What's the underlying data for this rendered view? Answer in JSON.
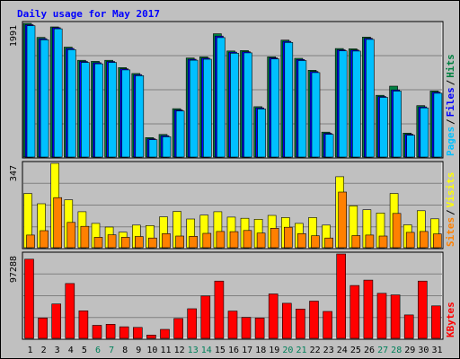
{
  "chart_data": {
    "type": "bar",
    "title": "Daily usage for May 2017",
    "categories": [
      "1",
      "2",
      "3",
      "4",
      "5",
      "6",
      "7",
      "8",
      "9",
      "10",
      "11",
      "12",
      "13",
      "14",
      "15",
      "16",
      "17",
      "18",
      "19",
      "20",
      "21",
      "22",
      "23",
      "24",
      "25",
      "26",
      "27",
      "28",
      "29",
      "30",
      "31"
    ],
    "weekend_days": [
      "6",
      "7",
      "13",
      "14",
      "20",
      "21",
      "27",
      "28"
    ],
    "panels": [
      {
        "id": "hits-files-pages",
        "max_label": "1991",
        "ylim": [
          0,
          1991
        ],
        "legend": [
          {
            "label": "Pages",
            "color": "#00c0ff"
          },
          {
            "label": "Files",
            "color": "#0000ff"
          },
          {
            "label": "Hits",
            "color": "#008040"
          }
        ],
        "series": [
          {
            "name": "Hits",
            "color": "#008040",
            "values": [
              1991,
              1781,
              1937,
              1637,
              1441,
              1424,
              1441,
              1332,
              1244,
              290,
              337,
              720,
              1475,
              1491,
              1836,
              1580,
              1586,
              750,
              1493,
              1741,
              1470,
              1292,
              372,
              1615,
              1612,
              1787,
              920,
              1055,
              357,
              765,
              983
            ]
          },
          {
            "name": "Files",
            "color": "#0000ff",
            "values": [
              1971,
              1762,
              1925,
              1617,
              1423,
              1404,
              1423,
              1314,
              1227,
              273,
              318,
              702,
              1457,
              1473,
              1801,
              1562,
              1568,
              732,
              1476,
              1723,
              1452,
              1274,
              354,
              1597,
              1594,
              1768,
              902,
              1000,
              340,
              747,
              966
            ]
          },
          {
            "name": "Pages",
            "color": "#00c0ff",
            "values": [
              1955,
              1746,
              1910,
              1600,
              1408,
              1388,
              1408,
              1298,
              1212,
              258,
              302,
              686,
              1442,
              1456,
              1778,
              1546,
              1552,
              716,
              1460,
              1707,
              1436,
              1258,
              338,
              1581,
              1578,
              1752,
              888,
              982,
              325,
              732,
              950
            ]
          }
        ]
      },
      {
        "id": "visits-sites",
        "max_label": "347",
        "ylim": [
          0,
          347
        ],
        "legend": [
          {
            "label": "Sites",
            "color": "#ff8000"
          },
          {
            "label": "Visits",
            "color": "#ffff00"
          }
        ],
        "series": [
          {
            "name": "Visits",
            "color": "#ffff00",
            "values": [
              223,
              181,
              347,
              197,
              148,
              100,
              85,
              64,
              93,
              91,
              127,
              149,
              118,
              134,
              148,
              126,
              121,
              117,
              133,
              124,
              100,
              124,
              93,
              292,
              172,
              156,
              143,
              223,
              94,
              152,
              119
            ]
          },
          {
            "name": "Sites",
            "color": "#ff8000",
            "values": [
              52,
              70,
              206,
              104,
              88,
              43,
              53,
              43,
              46,
              40,
              58,
              48,
              47,
              59,
              67,
              66,
              71,
              60,
              80,
              84,
              58,
              49,
              40,
              229,
              50,
              52,
              48,
              141,
              63,
              67,
              57
            ]
          }
        ]
      },
      {
        "id": "kbytes",
        "max_label": "97288",
        "ylim": [
          0,
          97288
        ],
        "legend": [
          {
            "label": "KBytes",
            "color": "#ff0000"
          }
        ],
        "series": [
          {
            "name": "KBytes",
            "color": "#ff0000",
            "values": [
              91300,
              23500,
              39600,
              63200,
              31800,
              15000,
              16300,
              13300,
              12600,
              3800,
              10300,
              22900,
              34200,
              48800,
              66000,
              31500,
              24200,
              23500,
              51200,
              40500,
              33800,
              43000,
              31000,
              97288,
              61000,
              67200,
              52000,
              50100,
              27000,
              66000,
              37500
            ]
          }
        ]
      }
    ]
  }
}
